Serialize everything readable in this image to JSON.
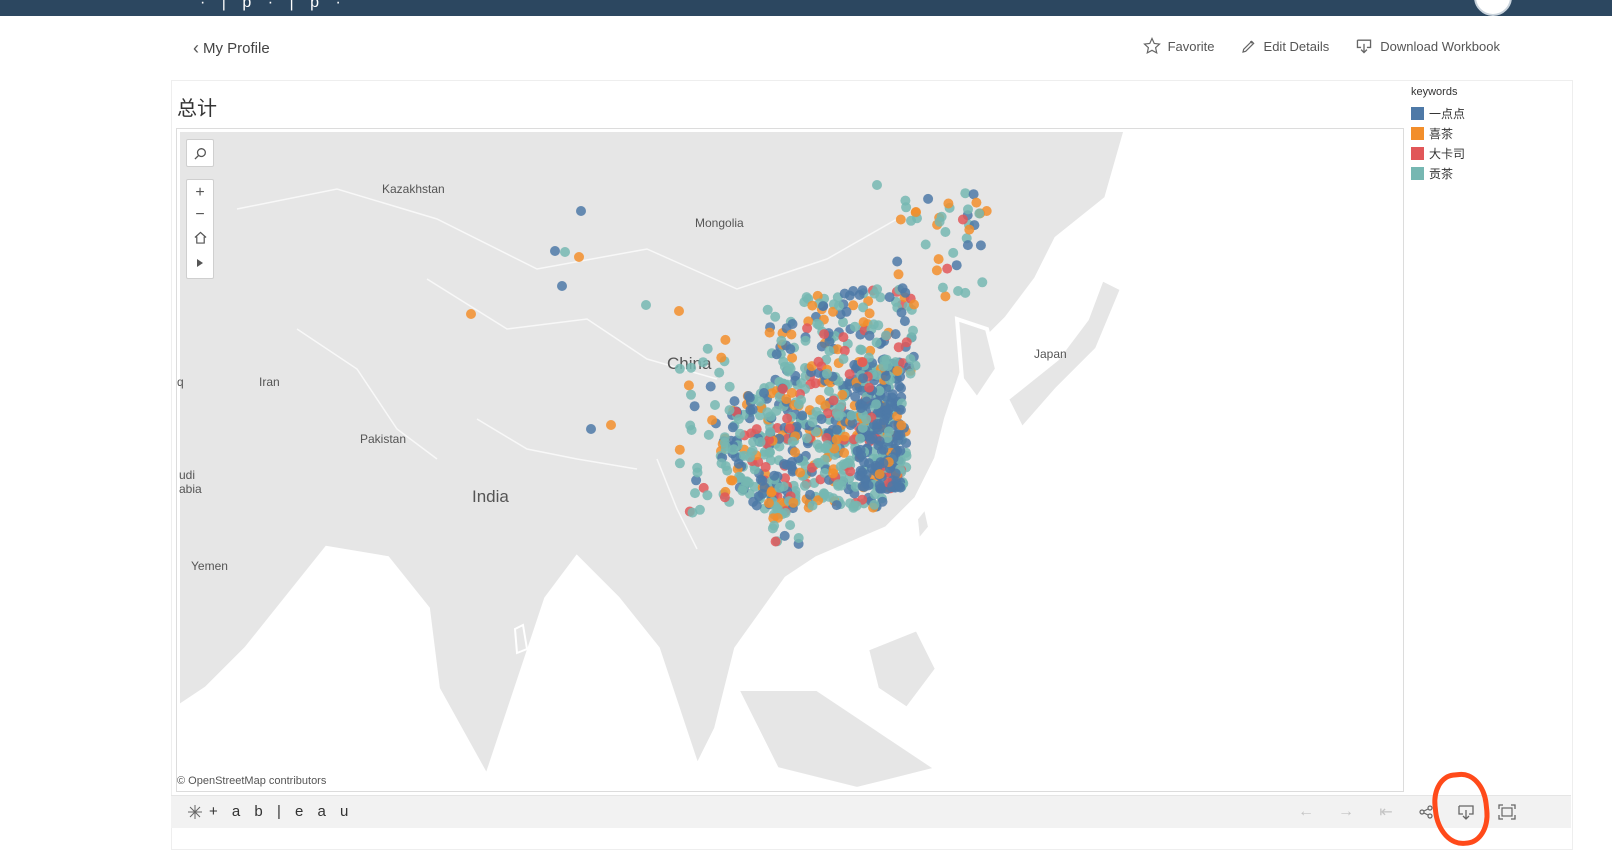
{
  "header": {
    "partial_title": "· | p · | p ·"
  },
  "back": {
    "label": "My Profile"
  },
  "actions": {
    "favorite": "Favorite",
    "edit": "Edit Details",
    "download": "Download Workbook"
  },
  "viz": {
    "title": "总计",
    "map_labels": {
      "kazakhstan": "Kazakhstan",
      "mongolia": "Mongolia",
      "china": "China",
      "japan": "Japan",
      "iran": "Iran",
      "pakistan": "Pakistan",
      "india": "India",
      "yemen": "Yemen",
      "saudi1": "udi",
      "saudi2": "abia",
      "q": "q"
    },
    "attribution": "© OpenStreetMap contributors"
  },
  "legend": {
    "title": "keywords",
    "items": [
      {
        "label": "一点点",
        "color": "#4e79a7"
      },
      {
        "label": "喜茶",
        "color": "#f28e2b"
      },
      {
        "label": "大卡司",
        "color": "#e15759"
      },
      {
        "label": "贡茶",
        "color": "#76b7b2"
      }
    ]
  },
  "toolbar": {
    "brand": "+ a b | e a u"
  },
  "icons": [
    "search-icon",
    "zoom-in-icon",
    "zoom-out-icon",
    "home-icon",
    "play-icon",
    "star-icon",
    "pencil-icon",
    "download-icon",
    "undo-icon",
    "redo-icon",
    "revert-icon",
    "share-icon",
    "download-icon",
    "fullscreen-icon"
  ]
}
